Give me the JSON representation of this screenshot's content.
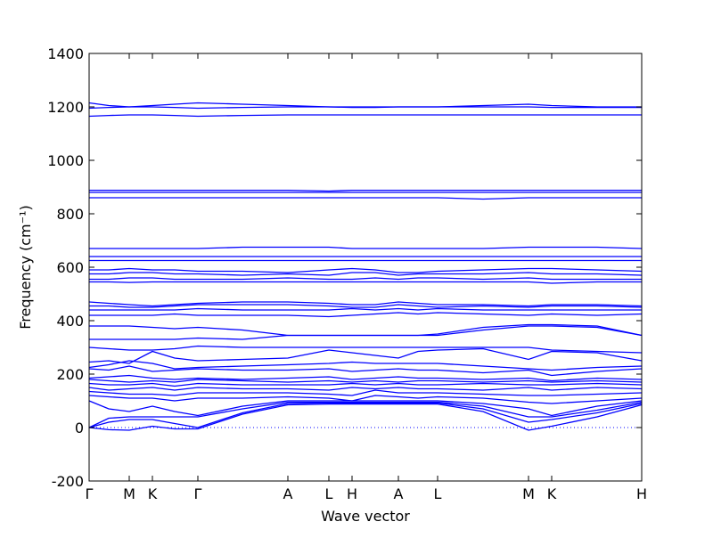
{
  "chart_data": {
    "type": "line",
    "xlabel": "Wave vector",
    "ylabel": "Frequency (cm⁻¹)",
    "x": [
      0,
      22,
      45,
      71,
      96,
      122,
      172,
      223,
      269,
      295,
      321,
      347,
      369,
      391,
      442,
      493,
      519,
      570,
      620
    ],
    "xlim": [
      0,
      620
    ],
    "xticks": [
      {
        "value": 0,
        "label": "Γ"
      },
      {
        "value": 45,
        "label": "M"
      },
      {
        "value": 71,
        "label": "K"
      },
      {
        "value": 122,
        "label": "Γ"
      },
      {
        "value": 223,
        "label": "A"
      },
      {
        "value": 269,
        "label": "L"
      },
      {
        "value": 295,
        "label": "H"
      },
      {
        "value": 347,
        "label": "A"
      },
      {
        "value": 391,
        "label": "L"
      },
      {
        "value": 493,
        "label": "M"
      },
      {
        "value": 519,
        "label": "K"
      },
      {
        "value": 620,
        "label": "H"
      }
    ],
    "ylim": [
      -200,
      1400
    ],
    "yticks": [
      -200,
      0,
      200,
      400,
      600,
      800,
      1000,
      1200,
      1400
    ],
    "hline": 0,
    "color": "#0000ff",
    "series": [
      {
        "color": "#0000ff",
        "values": [
          0,
          -8,
          -10,
          5,
          -5,
          -5,
          50,
          85,
          88,
          88,
          88,
          88,
          88,
          88,
          60,
          -10,
          5,
          40,
          85
        ]
      },
      {
        "color": "#0000ff",
        "values": [
          0,
          20,
          30,
          30,
          15,
          0,
          55,
          90,
          92,
          92,
          92,
          92,
          92,
          92,
          70,
          20,
          30,
          55,
          90
        ]
      },
      {
        "color": "#0000ff",
        "values": [
          0,
          35,
          40,
          40,
          40,
          40,
          70,
          95,
          95,
          95,
          95,
          95,
          95,
          95,
          80,
          40,
          40,
          65,
          95
        ]
      },
      {
        "color": "#0000ff",
        "values": [
          100,
          70,
          60,
          80,
          60,
          45,
          80,
          100,
          100,
          100,
          100,
          100,
          100,
          100,
          90,
          70,
          45,
          80,
          100
        ]
      },
      {
        "color": "#0000ff",
        "values": [
          120,
          115,
          110,
          110,
          100,
          110,
          110,
          115,
          110,
          100,
          120,
          115,
          110,
          115,
          110,
          95,
          90,
          100,
          110
        ]
      },
      {
        "color": "#0000ff",
        "values": [
          135,
          130,
          125,
          125,
          120,
          130,
          130,
          130,
          125,
          120,
          140,
          130,
          130,
          130,
          125,
          120,
          120,
          125,
          130
        ]
      },
      {
        "color": "#0000ff",
        "values": [
          150,
          140,
          145,
          150,
          140,
          150,
          145,
          145,
          140,
          150,
          145,
          150,
          145,
          145,
          140,
          150,
          140,
          150,
          145
        ]
      },
      {
        "color": "#0000ff",
        "values": [
          165,
          160,
          160,
          165,
          155,
          165,
          160,
          160,
          160,
          165,
          160,
          165,
          160,
          160,
          165,
          160,
          160,
          165,
          160
        ]
      },
      {
        "color": "#0000ff",
        "values": [
          180,
          175,
          170,
          175,
          170,
          180,
          175,
          170,
          175,
          170,
          175,
          170,
          175,
          175,
          170,
          175,
          170,
          175,
          170
        ]
      },
      {
        "color": "#0000ff",
        "values": [
          185,
          190,
          195,
          185,
          180,
          185,
          180,
          185,
          190,
          180,
          185,
          190,
          185,
          185,
          180,
          185,
          175,
          185,
          180
        ]
      },
      {
        "color": "#0000ff",
        "values": [
          220,
          215,
          230,
          210,
          215,
          220,
          215,
          215,
          220,
          210,
          215,
          220,
          215,
          215,
          205,
          215,
          195,
          210,
          220
        ]
      },
      {
        "color": "#0000ff",
        "values": [
          225,
          235,
          250,
          240,
          220,
          225,
          230,
          235,
          240,
          245,
          240,
          240,
          240,
          240,
          230,
          220,
          215,
          225,
          230
        ]
      },
      {
        "color": "#0000ff",
        "values": [
          245,
          250,
          240,
          285,
          260,
          250,
          255,
          260,
          290,
          280,
          270,
          260,
          285,
          290,
          295,
          255,
          285,
          280,
          250
        ]
      },
      {
        "color": "#0000ff",
        "values": [
          300,
          295,
          290,
          290,
          295,
          305,
          300,
          300,
          300,
          300,
          300,
          300,
          300,
          300,
          300,
          300,
          290,
          285,
          280
        ]
      },
      {
        "color": "#0000ff",
        "values": [
          330,
          330,
          330,
          330,
          330,
          335,
          330,
          345,
          345,
          345,
          345,
          345,
          345,
          345,
          365,
          380,
          380,
          375,
          345
        ]
      },
      {
        "color": "#0000ff",
        "values": [
          380,
          380,
          380,
          375,
          370,
          375,
          365,
          345,
          345,
          345,
          345,
          345,
          345,
          350,
          375,
          385,
          385,
          380,
          345
        ]
      },
      {
        "color": "#0000ff",
        "values": [
          420,
          420,
          420,
          420,
          425,
          420,
          420,
          420,
          415,
          420,
          425,
          430,
          425,
          430,
          425,
          420,
          425,
          420,
          425
        ]
      },
      {
        "color": "#0000ff",
        "values": [
          440,
          440,
          440,
          440,
          440,
          445,
          440,
          440,
          440,
          445,
          440,
          445,
          440,
          445,
          440,
          440,
          440,
          440,
          440
        ]
      },
      {
        "color": "#0000ff",
        "values": [
          455,
          455,
          450,
          450,
          455,
          460,
          460,
          460,
          455,
          450,
          450,
          460,
          455,
          450,
          455,
          450,
          455,
          455,
          450
        ]
      },
      {
        "color": "#0000ff",
        "values": [
          470,
          465,
          460,
          455,
          460,
          465,
          470,
          470,
          465,
          460,
          460,
          470,
          465,
          460,
          460,
          455,
          460,
          460,
          455
        ]
      },
      {
        "color": "#0000ff",
        "values": [
          545,
          545,
          543,
          545,
          545,
          545,
          545,
          545,
          545,
          545,
          545,
          545,
          545,
          545,
          545,
          545,
          540,
          545,
          545
        ]
      },
      {
        "color": "#0000ff",
        "values": [
          555,
          555,
          560,
          560,
          555,
          555,
          555,
          560,
          555,
          555,
          560,
          555,
          560,
          560,
          555,
          560,
          555,
          555,
          555
        ]
      },
      {
        "color": "#0000ff",
        "values": [
          575,
          575,
          580,
          580,
          575,
          575,
          570,
          575,
          570,
          580,
          580,
          570,
          575,
          575,
          575,
          580,
          575,
          575,
          570
        ]
      },
      {
        "color": "#0000ff",
        "values": [
          590,
          590,
          595,
          590,
          590,
          585,
          585,
          580,
          590,
          595,
          590,
          580,
          580,
          585,
          590,
          595,
          595,
          590,
          585
        ]
      },
      {
        "color": "#0000ff",
        "values": [
          625,
          625,
          625,
          625,
          625,
          625,
          625,
          625,
          625,
          625,
          625,
          625,
          625,
          625,
          625,
          625,
          625,
          625,
          625
        ]
      },
      {
        "color": "#0000ff",
        "values": [
          640,
          640,
          640,
          640,
          640,
          640,
          640,
          640,
          640,
          640,
          640,
          640,
          640,
          640,
          640,
          640,
          640,
          640,
          640
        ]
      },
      {
        "color": "#0000ff",
        "values": [
          670,
          670,
          670,
          670,
          670,
          670,
          675,
          675,
          675,
          670,
          670,
          670,
          670,
          670,
          670,
          675,
          675,
          675,
          670
        ]
      },
      {
        "color": "#0000ff",
        "values": [
          860,
          860,
          860,
          860,
          860,
          860,
          860,
          860,
          860,
          860,
          860,
          860,
          860,
          860,
          855,
          860,
          860,
          860,
          860
        ]
      },
      {
        "color": "#0000ff",
        "values": [
          880,
          880,
          880,
          880,
          880,
          880,
          880,
          880,
          880,
          880,
          880,
          880,
          880,
          880,
          880,
          880,
          880,
          880,
          880
        ]
      },
      {
        "color": "#0000ff",
        "values": [
          888,
          888,
          888,
          888,
          888,
          888,
          888,
          888,
          885,
          888,
          888,
          888,
          888,
          888,
          888,
          888,
          888,
          888,
          888
        ]
      },
      {
        "color": "#0000ff",
        "values": [
          1165,
          1168,
          1170,
          1170,
          1168,
          1165,
          1168,
          1170,
          1170,
          1170,
          1170,
          1170,
          1170,
          1170,
          1170,
          1170,
          1170,
          1170,
          1170
        ]
      },
      {
        "color": "#0000ff",
        "values": [
          1195,
          1198,
          1200,
          1200,
          1198,
          1195,
          1198,
          1200,
          1200,
          1198,
          1198,
          1200,
          1200,
          1200,
          1200,
          1200,
          1198,
          1198,
          1198
        ]
      },
      {
        "color": "#0000ff",
        "values": [
          1215,
          1205,
          1200,
          1205,
          1210,
          1215,
          1210,
          1205,
          1200,
          1200,
          1200,
          1200,
          1200,
          1200,
          1205,
          1210,
          1205,
          1200,
          1200
        ]
      }
    ]
  }
}
